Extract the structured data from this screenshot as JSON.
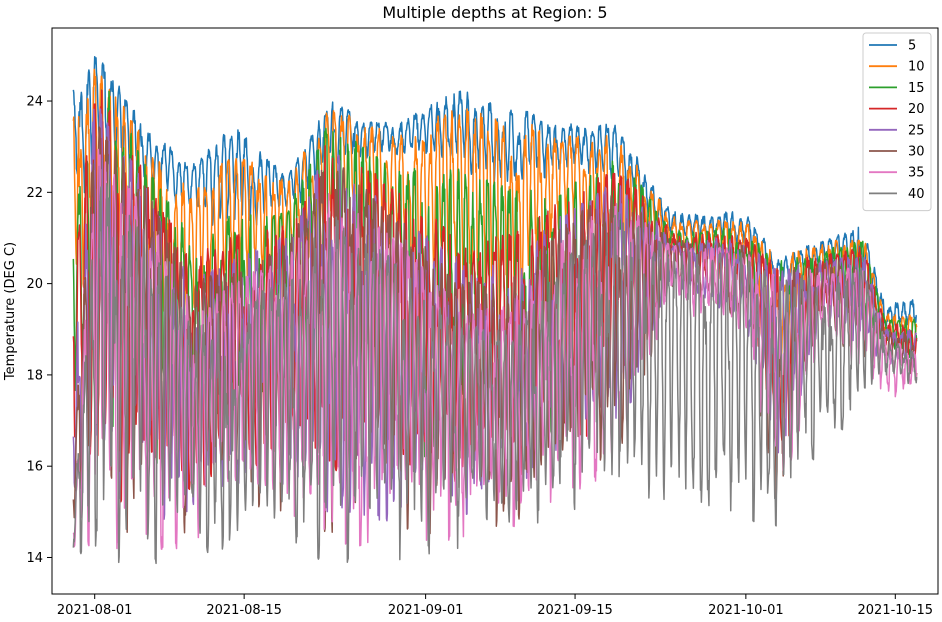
{
  "chart_data": {
    "type": "line",
    "title": "Multiple depths at Region: 5",
    "xlabel": "",
    "ylabel": "Temperature (DEG C)",
    "xlim": [
      "2021-07-28",
      "2021-10-19"
    ],
    "ylim": [
      13.2,
      25.6
    ],
    "x_ticks": [
      "2021-08-01",
      "2021-08-15",
      "2021-09-01",
      "2021-09-15",
      "2021-10-01",
      "2021-10-15"
    ],
    "y_ticks": [
      14,
      16,
      18,
      20,
      22,
      24
    ],
    "grid": false,
    "legend_position": "top-right",
    "x_start": "2021-07-30",
    "x_end": "2021-10-17",
    "series": [
      {
        "name": "5",
        "color": "#1f77b4",
        "env_x": [
          "2021-07-30",
          "2021-08-01",
          "2021-08-06",
          "2021-08-10",
          "2021-08-14",
          "2021-08-19",
          "2021-08-23",
          "2021-08-29",
          "2021-09-04",
          "2021-09-09",
          "2021-09-14",
          "2021-09-19",
          "2021-09-24",
          "2021-10-01",
          "2021-10-04",
          "2021-10-08",
          "2021-10-12",
          "2021-10-14",
          "2021-10-17"
        ],
        "env_hi": [
          24.2,
          25.0,
          23.4,
          22.5,
          23.4,
          22.3,
          24.0,
          23.4,
          24.2,
          23.8,
          23.5,
          23.4,
          21.5,
          21.5,
          20.5,
          20.9,
          21.2,
          19.5,
          19.6
        ],
        "env_lo": [
          21.5,
          22.5,
          22.0,
          21.5,
          21.0,
          21.5,
          22.5,
          22.8,
          22.5,
          22.0,
          22.5,
          22.0,
          21.0,
          20.8,
          19.8,
          20.3,
          20.0,
          19.0,
          19.0
        ]
      },
      {
        "name": "10",
        "color": "#ff7f0e",
        "env_x": [
          "2021-07-30",
          "2021-08-01",
          "2021-08-06",
          "2021-08-10",
          "2021-08-14",
          "2021-08-19",
          "2021-08-23",
          "2021-08-29",
          "2021-09-04",
          "2021-09-09",
          "2021-09-14",
          "2021-09-19",
          "2021-09-24",
          "2021-10-01",
          "2021-10-04",
          "2021-10-08",
          "2021-10-12",
          "2021-10-14",
          "2021-10-17"
        ],
        "env_hi": [
          23.6,
          24.8,
          23.0,
          22.0,
          22.8,
          22.2,
          23.8,
          23.2,
          23.8,
          23.6,
          23.2,
          23.2,
          21.4,
          21.3,
          20.5,
          20.8,
          21.0,
          19.3,
          19.3
        ],
        "env_lo": [
          19.5,
          20.5,
          19.0,
          19.0,
          19.5,
          20.0,
          21.0,
          20.5,
          19.5,
          19.0,
          21.0,
          20.5,
          20.8,
          20.5,
          18.0,
          20.0,
          19.5,
          18.8,
          18.5
        ]
      },
      {
        "name": "15",
        "color": "#2ca02c",
        "env_x": [
          "2021-07-30",
          "2021-08-01",
          "2021-08-06",
          "2021-08-10",
          "2021-08-14",
          "2021-08-19",
          "2021-08-23",
          "2021-08-29",
          "2021-09-04",
          "2021-09-09",
          "2021-09-14",
          "2021-09-19",
          "2021-09-24",
          "2021-10-01",
          "2021-10-04",
          "2021-10-08",
          "2021-10-12",
          "2021-10-14",
          "2021-10-17"
        ],
        "env_hi": [
          21.0,
          24.8,
          22.5,
          21.0,
          21.5,
          21.5,
          23.5,
          22.5,
          22.5,
          22.0,
          22.0,
          22.8,
          21.2,
          21.1,
          20.4,
          20.7,
          20.9,
          19.2,
          19.2
        ],
        "env_lo": [
          17.0,
          17.0,
          16.0,
          16.5,
          17.0,
          17.5,
          17.5,
          16.5,
          16.0,
          16.0,
          17.0,
          17.5,
          20.5,
          20.0,
          16.5,
          19.8,
          19.0,
          18.6,
          18.3
        ]
      },
      {
        "name": "20",
        "color": "#d62728",
        "env_x": [
          "2021-07-30",
          "2021-08-01",
          "2021-08-06",
          "2021-08-10",
          "2021-08-14",
          "2021-08-19",
          "2021-08-23",
          "2021-08-29",
          "2021-09-04",
          "2021-09-09",
          "2021-09-14",
          "2021-09-19",
          "2021-09-24",
          "2021-10-01",
          "2021-10-04",
          "2021-10-08",
          "2021-10-12",
          "2021-10-14",
          "2021-10-17"
        ],
        "env_hi": [
          20.0,
          24.5,
          22.2,
          20.5,
          21.0,
          21.2,
          23.2,
          22.0,
          21.0,
          21.0,
          21.8,
          22.5,
          21.1,
          21.0,
          20.3,
          20.6,
          20.8,
          19.1,
          19.0
        ],
        "env_lo": [
          15.0,
          15.5,
          15.0,
          15.5,
          16.0,
          16.0,
          16.0,
          15.5,
          15.5,
          15.5,
          16.5,
          17.0,
          20.2,
          19.5,
          15.5,
          19.5,
          18.8,
          18.5,
          18.2
        ]
      },
      {
        "name": "25",
        "color": "#9467bd",
        "env_x": [
          "2021-07-30",
          "2021-08-01",
          "2021-08-06",
          "2021-08-10",
          "2021-08-14",
          "2021-08-19",
          "2021-08-23",
          "2021-08-29",
          "2021-09-04",
          "2021-09-09",
          "2021-09-14",
          "2021-09-19",
          "2021-09-24",
          "2021-10-01",
          "2021-10-04",
          "2021-10-08",
          "2021-10-12",
          "2021-10-14",
          "2021-10-17"
        ],
        "env_hi": [
          18.0,
          24.0,
          22.0,
          20.0,
          20.5,
          21.0,
          23.0,
          21.5,
          20.5,
          20.5,
          21.5,
          22.2,
          21.0,
          20.9,
          20.2,
          20.5,
          20.6,
          19.0,
          18.9
        ],
        "env_lo": [
          14.8,
          15.0,
          14.8,
          15.0,
          15.5,
          15.0,
          15.0,
          14.8,
          15.0,
          15.0,
          15.8,
          16.5,
          20.0,
          19.2,
          15.2,
          19.2,
          18.5,
          18.3,
          18.0
        ]
      },
      {
        "name": "30",
        "color": "#8c564b",
        "env_x": [
          "2021-07-30",
          "2021-08-01",
          "2021-08-06",
          "2021-08-10",
          "2021-08-14",
          "2021-08-19",
          "2021-08-23",
          "2021-08-29",
          "2021-09-04",
          "2021-09-09",
          "2021-09-14",
          "2021-09-19",
          "2021-09-24",
          "2021-10-01",
          "2021-10-04",
          "2021-10-08",
          "2021-10-12",
          "2021-10-14",
          "2021-10-17"
        ],
        "env_hi": [
          16.0,
          23.5,
          22.0,
          20.0,
          20.2,
          20.8,
          22.8,
          21.5,
          20.0,
          20.0,
          21.3,
          22.0,
          20.9,
          20.8,
          20.2,
          20.4,
          20.5,
          18.9,
          18.8
        ],
        "env_lo": [
          14.5,
          14.6,
          14.5,
          14.6,
          15.0,
          14.6,
          14.6,
          14.5,
          14.6,
          14.8,
          15.5,
          16.2,
          19.8,
          19.0,
          15.0,
          19.0,
          18.3,
          18.2,
          17.9
        ]
      },
      {
        "name": "35",
        "color": "#e377c2",
        "env_x": [
          "2021-07-30",
          "2021-08-01",
          "2021-08-06",
          "2021-08-10",
          "2021-08-14",
          "2021-08-19",
          "2021-08-23",
          "2021-08-29",
          "2021-09-04",
          "2021-09-09",
          "2021-09-14",
          "2021-09-19",
          "2021-09-24",
          "2021-10-01",
          "2021-10-04",
          "2021-10-08",
          "2021-10-12",
          "2021-10-14",
          "2021-10-17"
        ],
        "env_hi": [
          15.0,
          23.0,
          21.5,
          19.5,
          20.0,
          20.5,
          22.0,
          21.0,
          19.5,
          19.5,
          21.0,
          21.8,
          20.8,
          20.7,
          20.1,
          20.3,
          20.4,
          18.8,
          18.6
        ],
        "env_lo": [
          14.3,
          14.3,
          14.2,
          14.3,
          14.7,
          14.3,
          14.3,
          14.3,
          14.4,
          14.6,
          15.3,
          16.0,
          19.6,
          18.8,
          14.9,
          18.8,
          18.1,
          17.3,
          17.8
        ]
      },
      {
        "name": "40",
        "color": "#7f7f7f",
        "env_x": [
          "2021-07-30",
          "2021-08-01",
          "2021-08-06",
          "2021-08-10",
          "2021-08-14",
          "2021-08-19",
          "2021-08-23",
          "2021-08-29",
          "2021-09-04",
          "2021-09-09",
          "2021-09-14",
          "2021-09-19",
          "2021-09-24",
          "2021-10-01",
          "2021-10-04",
          "2021-10-08",
          "2021-10-12",
          "2021-10-14",
          "2021-10-17"
        ],
        "env_hi": [
          14.5,
          22.5,
          21.0,
          19.0,
          19.5,
          20.0,
          21.5,
          20.5,
          19.0,
          19.0,
          20.5,
          21.5,
          20.7,
          20.6,
          20.0,
          20.2,
          20.3,
          18.7,
          18.5
        ],
        "env_lo": [
          14.2,
          14.0,
          13.9,
          14.0,
          14.3,
          14.0,
          13.9,
          14.0,
          14.2,
          14.5,
          15.0,
          15.5,
          14.5,
          14.8,
          14.7,
          16.5,
          17.0,
          18.0,
          17.7
        ]
      }
    ]
  }
}
